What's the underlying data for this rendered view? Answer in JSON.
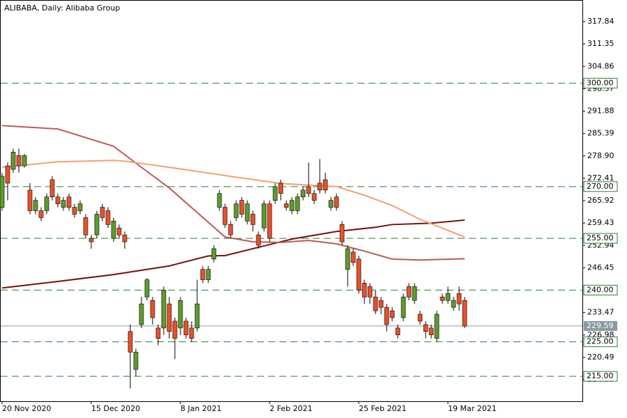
{
  "chart_data": {
    "type": "candlestick",
    "title": "ALIBABA, Daily:  Alibaba Group",
    "categories": [
      "20 Nov 2020",
      null,
      null,
      null,
      null,
      null,
      null,
      null,
      null,
      null,
      null,
      null,
      null,
      null,
      null,
      null,
      "15 Dec 2020",
      null,
      null,
      null,
      null,
      null,
      null,
      null,
      null,
      null,
      null,
      null,
      null,
      null,
      null,
      null,
      "8 Jan 2021",
      null,
      null,
      null,
      null,
      null,
      null,
      null,
      null,
      null,
      null,
      null,
      null,
      null,
      null,
      null,
      "2 Feb 2021",
      null,
      null,
      null,
      null,
      null,
      null,
      null,
      null,
      null,
      null,
      null,
      null,
      null,
      null,
      null,
      "25 Feb 2021",
      null,
      null,
      null,
      null,
      null,
      null,
      null,
      null,
      null,
      null,
      null,
      null,
      null,
      null,
      null,
      "19 Mar 2021",
      null,
      null,
      null
    ],
    "open": [
      264,
      276,
      275,
      279,
      276,
      269,
      263,
      263,
      263,
      272,
      267,
      264,
      267,
      264,
      263,
      261,
      255,
      256,
      264,
      263,
      255,
      258,
      256,
      228,
      217,
      230,
      238,
      237,
      229,
      229,
      236,
      231,
      229,
      231,
      229,
      229,
      246,
      243,
      249,
      264,
      264,
      259,
      261,
      266,
      260,
      262,
      256,
      258,
      265,
      266,
      271,
      265,
      263,
      263,
      267,
      270,
      268,
      271,
      272,
      264,
      267,
      259,
      246,
      251,
      249,
      242,
      241,
      238,
      237,
      235,
      234,
      229,
      232,
      241,
      237,
      233,
      230,
      229,
      226,
      238,
      237,
      235,
      239,
      237
    ],
    "high": [
      274,
      277,
      281,
      281,
      279.5,
      271,
      267,
      264,
      268,
      273,
      268,
      267,
      268,
      265,
      266,
      262,
      256,
      263,
      265,
      264,
      261,
      259,
      257,
      230,
      223,
      238,
      243.5,
      238,
      230,
      241,
      238,
      232,
      238,
      232,
      231,
      243,
      247,
      247,
      253,
      269,
      265,
      260,
      266,
      267,
      266,
      263,
      257,
      266,
      266,
      271,
      272,
      266,
      267,
      268,
      270,
      277,
      269,
      278,
      274,
      267,
      268,
      260,
      253,
      252,
      250,
      243,
      242,
      240,
      238,
      236,
      235,
      230,
      239,
      242,
      242,
      234,
      231,
      230,
      234,
      239,
      241,
      238,
      241,
      238
    ],
    "low": [
      263,
      266,
      274,
      274,
      275.5,
      262,
      262,
      260,
      262,
      266,
      264,
      263,
      263,
      261,
      262,
      255,
      252,
      255,
      260,
      258,
      254,
      255,
      252,
      211.5,
      215,
      229,
      237,
      230,
      224,
      227,
      226,
      220,
      227,
      226,
      225,
      228,
      242,
      242,
      248,
      263,
      258,
      255,
      260,
      261,
      259,
      257,
      252,
      257,
      254,
      265,
      266,
      263,
      262,
      262,
      266,
      267,
      265,
      268,
      268,
      263,
      263,
      253,
      241,
      247,
      239,
      236,
      236,
      233,
      233,
      228,
      231,
      226,
      231,
      237,
      236,
      230,
      226,
      226,
      225,
      236,
      236,
      234,
      234,
      229
    ],
    "close": [
      273,
      271,
      280,
      276,
      279,
      263,
      266,
      261,
      267,
      267,
      265,
      266,
      264,
      262,
      265,
      256,
      254,
      262,
      261,
      259,
      260,
      256,
      254,
      222,
      222,
      236,
      243,
      232,
      226,
      240,
      228,
      226,
      237,
      227,
      226,
      236,
      243,
      246,
      252,
      268,
      259,
      256,
      265,
      262,
      265,
      259,
      253,
      265,
      255,
      270,
      268,
      264,
      266,
      267,
      269,
      268,
      266,
      269,
      269,
      266,
      264,
      254,
      252,
      248,
      240,
      238,
      238,
      234,
      235,
      230,
      232,
      227,
      238,
      238,
      241,
      231,
      228,
      227,
      233,
      237,
      239,
      237,
      236,
      229.59
    ],
    "up_color": "#5e9c2e",
    "down_color": "#e9512b",
    "moving_averages": [
      {
        "color": "#7a0f0f",
        "x": [
          0,
          10,
          20,
          30,
          37,
          40,
          50,
          52,
          60,
          67,
          70,
          77,
          83
        ],
        "values": [
          240.6,
          242.5,
          244.5,
          247,
          249.9,
          250,
          254,
          254.8,
          257,
          258.2,
          259,
          259.4,
          260.3
        ]
      },
      {
        "color": "#c05a55",
        "x": [
          0,
          10,
          20,
          25,
          30,
          35,
          40,
          45,
          50,
          55,
          60,
          65,
          70,
          75,
          83
        ],
        "values": [
          287.7,
          286.7,
          281.7,
          275.6,
          269.6,
          262.5,
          255.4,
          254,
          253.8,
          254.4,
          253.4,
          251.3,
          249,
          248.7,
          249.1
        ]
      },
      {
        "color": "#f4a070",
        "x": [
          0,
          10,
          20,
          22,
          30,
          40,
          50,
          60,
          65,
          70,
          75,
          83
        ],
        "values": [
          275.6,
          277.2,
          277.6,
          277.4,
          275.6,
          273.2,
          270.9,
          270,
          267.5,
          264.5,
          260.5,
          255.4
        ]
      }
    ],
    "levels": [
      {
        "value": 300,
        "label": "300.00"
      },
      {
        "value": 270,
        "label": "270.00"
      },
      {
        "value": 255,
        "label": "255.00"
      },
      {
        "value": 240,
        "label": "240.00"
      },
      {
        "value": 225,
        "label": "225.00"
      },
      {
        "value": 215,
        "label": "215.00"
      }
    ],
    "level_color": "#2e7d32",
    "current_price": {
      "value": 229.59,
      "label": "229.59"
    },
    "ylim": [
      207.76,
      324.1
    ],
    "yticks": [
      {
        "value": 317.84,
        "label": "317.84"
      },
      {
        "value": 311.35,
        "label": "311.35"
      },
      {
        "value": 304.86,
        "label": "304.86"
      },
      {
        "value": 298.37,
        "label": "298.37"
      },
      {
        "value": 291.88,
        "label": "291.88"
      },
      {
        "value": 285.39,
        "label": "285.39"
      },
      {
        "value": 278.9,
        "label": "278.90"
      },
      {
        "value": 272.41,
        "label": "272.41"
      },
      {
        "value": 265.92,
        "label": "265.92"
      },
      {
        "value": 259.43,
        "label": "259.43"
      },
      {
        "value": 252.94,
        "label": "252.94"
      },
      {
        "value": 246.45,
        "label": "246.45"
      },
      {
        "value": 233.47,
        "label": "233.47"
      },
      {
        "value": 226.98,
        "label": "226.98"
      },
      {
        "value": 220.49,
        "label": "220.49"
      },
      {
        "value": 214,
        "label": "214.00"
      }
    ]
  }
}
